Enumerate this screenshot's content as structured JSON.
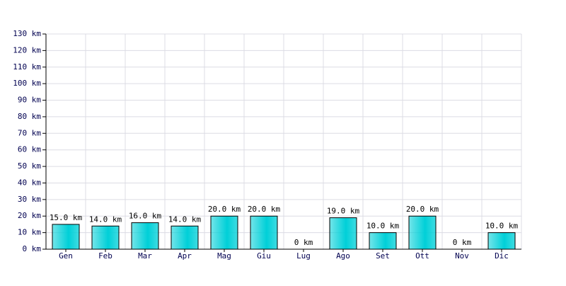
{
  "chart_data": {
    "type": "bar",
    "categories": [
      "Gen",
      "Feb",
      "Mar",
      "Apr",
      "Mag",
      "Giu",
      "Lug",
      "Ago",
      "Set",
      "Ott",
      "Nov",
      "Dic"
    ],
    "values": [
      15,
      14,
      16,
      14,
      20,
      20,
      0,
      19,
      10,
      20,
      0,
      10
    ],
    "value_labels": [
      "15.0 km",
      "14.0 km",
      "16.0 km",
      "14.0 km",
      "20.0 km",
      "20.0 km",
      "0 km",
      "19.0 km",
      "10.0 km",
      "20.0 km",
      "0 km",
      "10.0 km"
    ],
    "color": "#00d0d8",
    "ylim": [
      0,
      130
    ],
    "yticks": [
      {
        "value": 0,
        "label": "0 km"
      },
      {
        "value": 10,
        "label": "10 km"
      },
      {
        "value": 20,
        "label": "20 km"
      },
      {
        "value": 30,
        "label": "30 km"
      },
      {
        "value": 40,
        "label": "40 km"
      },
      {
        "value": 50,
        "label": "50 km"
      },
      {
        "value": 60,
        "label": "60 km"
      },
      {
        "value": 70,
        "label": "70 km"
      },
      {
        "value": 80,
        "label": "80 km"
      },
      {
        "value": 90,
        "label": "90 km"
      },
      {
        "value": 100,
        "label": "100 km"
      },
      {
        "value": 110,
        "label": "110 km"
      },
      {
        "value": 120,
        "label": "120 km"
      },
      {
        "value": 130,
        "label": "130 km"
      }
    ],
    "grid": true
  }
}
